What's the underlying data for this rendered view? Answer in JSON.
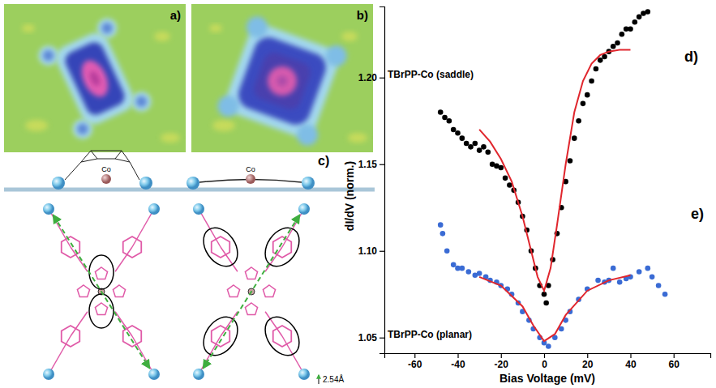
{
  "figure": {
    "panel_labels": [
      "a)",
      "b)",
      "c)"
    ],
    "diagram_labels": [
      "Co",
      "Co"
    ],
    "scale_label": "2.54Å"
  },
  "chart_data": {
    "type": "scatter",
    "x_label": "Bias Voltage (mV)",
    "y_label": "dI/dV (norm.)",
    "annotations": [
      "d)",
      "e)"
    ],
    "xlim": [
      -74,
      77
    ],
    "xticks": [
      -60,
      -40,
      -20,
      0,
      20,
      40,
      60
    ],
    "ylim": [
      1.041,
      1.241
    ],
    "yticks": [
      1.05,
      {
        "value": 1.1,
        "label": "1.10"
      },
      1.15,
      {
        "value": 1.2,
        "label": "1.20"
      }
    ],
    "grid": false,
    "series": [
      {
        "name": "TBrPP-Co (saddle)",
        "type": "scatter",
        "color": "#000000",
        "marker": "circle",
        "x": [
          -48,
          -46,
          -44,
          -42,
          -40,
          -38,
          -36,
          -34,
          -32,
          -30,
          -28,
          -26,
          -24,
          -22,
          -20,
          -18,
          -16,
          -14,
          -12,
          -10,
          -8,
          -6,
          -4,
          -2,
          0,
          1,
          2,
          4,
          6,
          8,
          10,
          12,
          14,
          16,
          18,
          20,
          22,
          24,
          26,
          28,
          30,
          32,
          34,
          36,
          38,
          40,
          42,
          44,
          46,
          48
        ],
        "values": [
          1.18,
          1.177,
          1.175,
          1.17,
          1.168,
          1.165,
          1.162,
          1.16,
          1.162,
          1.158,
          1.16,
          1.157,
          1.15,
          1.149,
          1.148,
          1.142,
          1.138,
          1.135,
          1.128,
          1.12,
          1.112,
          1.1,
          1.09,
          1.08,
          1.075,
          1.07,
          1.08,
          1.095,
          1.11,
          1.125,
          1.14,
          1.152,
          1.165,
          1.175,
          1.185,
          1.19,
          1.198,
          1.205,
          1.21,
          1.212,
          1.215,
          1.218,
          1.22,
          1.225,
          1.228,
          1.228,
          1.232,
          1.235,
          1.237,
          1.238
        ]
      },
      {
        "name": "TBrPP-Co (planar)",
        "type": "scatter",
        "color": "#3a6bd4",
        "marker": "circle",
        "x": [
          -48,
          -47,
          -45,
          -42,
          -40,
          -38,
          -35,
          -32,
          -30,
          -27,
          -25,
          -22,
          -20,
          -17,
          -15,
          -12,
          -10,
          -7,
          -5,
          -2,
          0,
          2,
          5,
          8,
          10,
          12,
          16,
          20,
          25,
          28,
          30,
          32,
          35,
          38,
          40,
          44,
          48,
          50,
          53,
          56
        ],
        "values": [
          1.115,
          1.11,
          1.1,
          1.092,
          1.09,
          1.09,
          1.088,
          1.086,
          1.087,
          1.085,
          1.083,
          1.082,
          1.08,
          1.078,
          1.075,
          1.07,
          1.065,
          1.06,
          1.055,
          1.05,
          1.047,
          1.045,
          1.05,
          1.055,
          1.06,
          1.065,
          1.072,
          1.078,
          1.083,
          1.082,
          1.083,
          1.09,
          1.082,
          1.084,
          1.085,
          1.088,
          1.09,
          1.085,
          1.08,
          1.075
        ]
      },
      {
        "type": "line",
        "color": "#e0262d",
        "line_style": "solid",
        "x": [
          -30,
          -25,
          -20,
          -15,
          -10,
          -6,
          -3,
          0,
          3,
          6,
          10,
          14,
          18,
          22,
          26,
          30,
          35,
          40
        ],
        "values": [
          1.17,
          1.163,
          1.153,
          1.14,
          1.12,
          1.1,
          1.085,
          1.077,
          1.09,
          1.115,
          1.15,
          1.18,
          1.198,
          1.208,
          1.213,
          1.215,
          1.216,
          1.216
        ]
      },
      {
        "type": "line",
        "color": "#e0262d",
        "line_style": "solid",
        "x": [
          -30,
          -20,
          -10,
          -5,
          0,
          5,
          10,
          20,
          30,
          40
        ],
        "values": [
          1.085,
          1.08,
          1.068,
          1.057,
          1.048,
          1.052,
          1.063,
          1.077,
          1.083,
          1.086
        ]
      }
    ]
  }
}
